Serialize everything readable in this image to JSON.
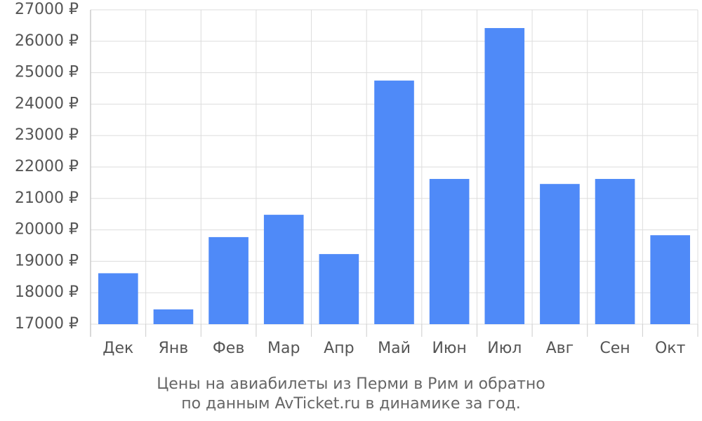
{
  "chart_data": {
    "type": "bar",
    "title": "Цены на авиабилеты из Перми в Рим и обратно",
    "subtitle": "по данным AvTicket.ru в динамике за год.",
    "categories": [
      "Дек",
      "Янв",
      "Фев",
      "Мар",
      "Апр",
      "Май",
      "Июн",
      "Июл",
      "Авг",
      "Сен",
      "Окт"
    ],
    "values": [
      18620,
      17470,
      19770,
      20480,
      19230,
      24750,
      21620,
      26420,
      21460,
      21620,
      19830
    ],
    "color": "#4f8af8",
    "ylim": [
      17000,
      27000
    ],
    "yticks": [
      {
        "value": 17000,
        "label": "17000 ₽"
      },
      {
        "value": 18000,
        "label": "18000 ₽"
      },
      {
        "value": 19000,
        "label": "19000 ₽"
      },
      {
        "value": 20000,
        "label": "20000 ₽"
      },
      {
        "value": 21000,
        "label": "21000 ₽"
      },
      {
        "value": 22000,
        "label": "22000 ₽"
      },
      {
        "value": 23000,
        "label": "23000 ₽"
      },
      {
        "value": 24000,
        "label": "24000 ₽"
      },
      {
        "value": 25000,
        "label": "25000 ₽"
      },
      {
        "value": 26000,
        "label": "26000 ₽"
      },
      {
        "value": 27000,
        "label": "27000 ₽"
      }
    ],
    "grid": true
  }
}
